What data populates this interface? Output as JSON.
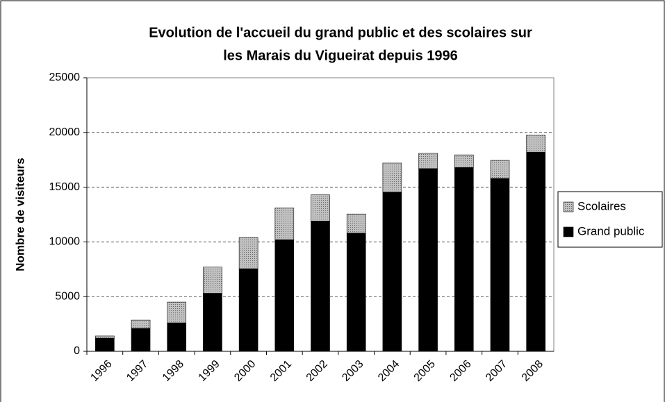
{
  "chart_data": {
    "type": "stacked_bar",
    "title": [
      "Evolution de l'accueil du grand public et des scolaires sur",
      "les Marais du Vigueirat depuis 1996"
    ],
    "y_label": "Nombre de visiteurs",
    "categories": [
      "1996",
      "1997",
      "1998",
      "1999",
      "2000",
      "2001",
      "2002",
      "2003",
      "2004",
      "2005",
      "2006",
      "2007",
      "2008"
    ],
    "series": [
      {
        "name": "Grand public",
        "color": "#000000",
        "values": [
          1200,
          2100,
          2600,
          5300,
          7550,
          10200,
          11900,
          10800,
          14550,
          16700,
          16800,
          15800,
          18200
        ]
      },
      {
        "name": "Scolaires",
        "color": "#c0c0c0",
        "values": [
          200,
          750,
          1900,
          2400,
          2850,
          2900,
          2400,
          1750,
          2650,
          1400,
          1150,
          1650,
          1550
        ]
      }
    ],
    "ylim": [
      0,
      25000
    ],
    "yticks": [
      0,
      5000,
      10000,
      15000,
      20000,
      25000
    ],
    "grid": true,
    "legend": "right"
  }
}
